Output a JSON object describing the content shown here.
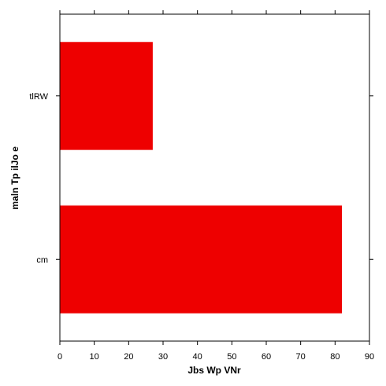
{
  "chart_data": {
    "type": "bar",
    "orientation": "horizontal",
    "categories": [
      "tlRW",
      "cm"
    ],
    "values": [
      27,
      82
    ],
    "color": "#ee0000",
    "xlabel": "Jbs Wp VNr",
    "ylabel": "maln Tp ilJo e",
    "xlim": [
      0,
      90
    ],
    "xticks": [
      0,
      10,
      20,
      30,
      40,
      50,
      60,
      70,
      80,
      90
    ],
    "grid": false,
    "legend": "none"
  }
}
